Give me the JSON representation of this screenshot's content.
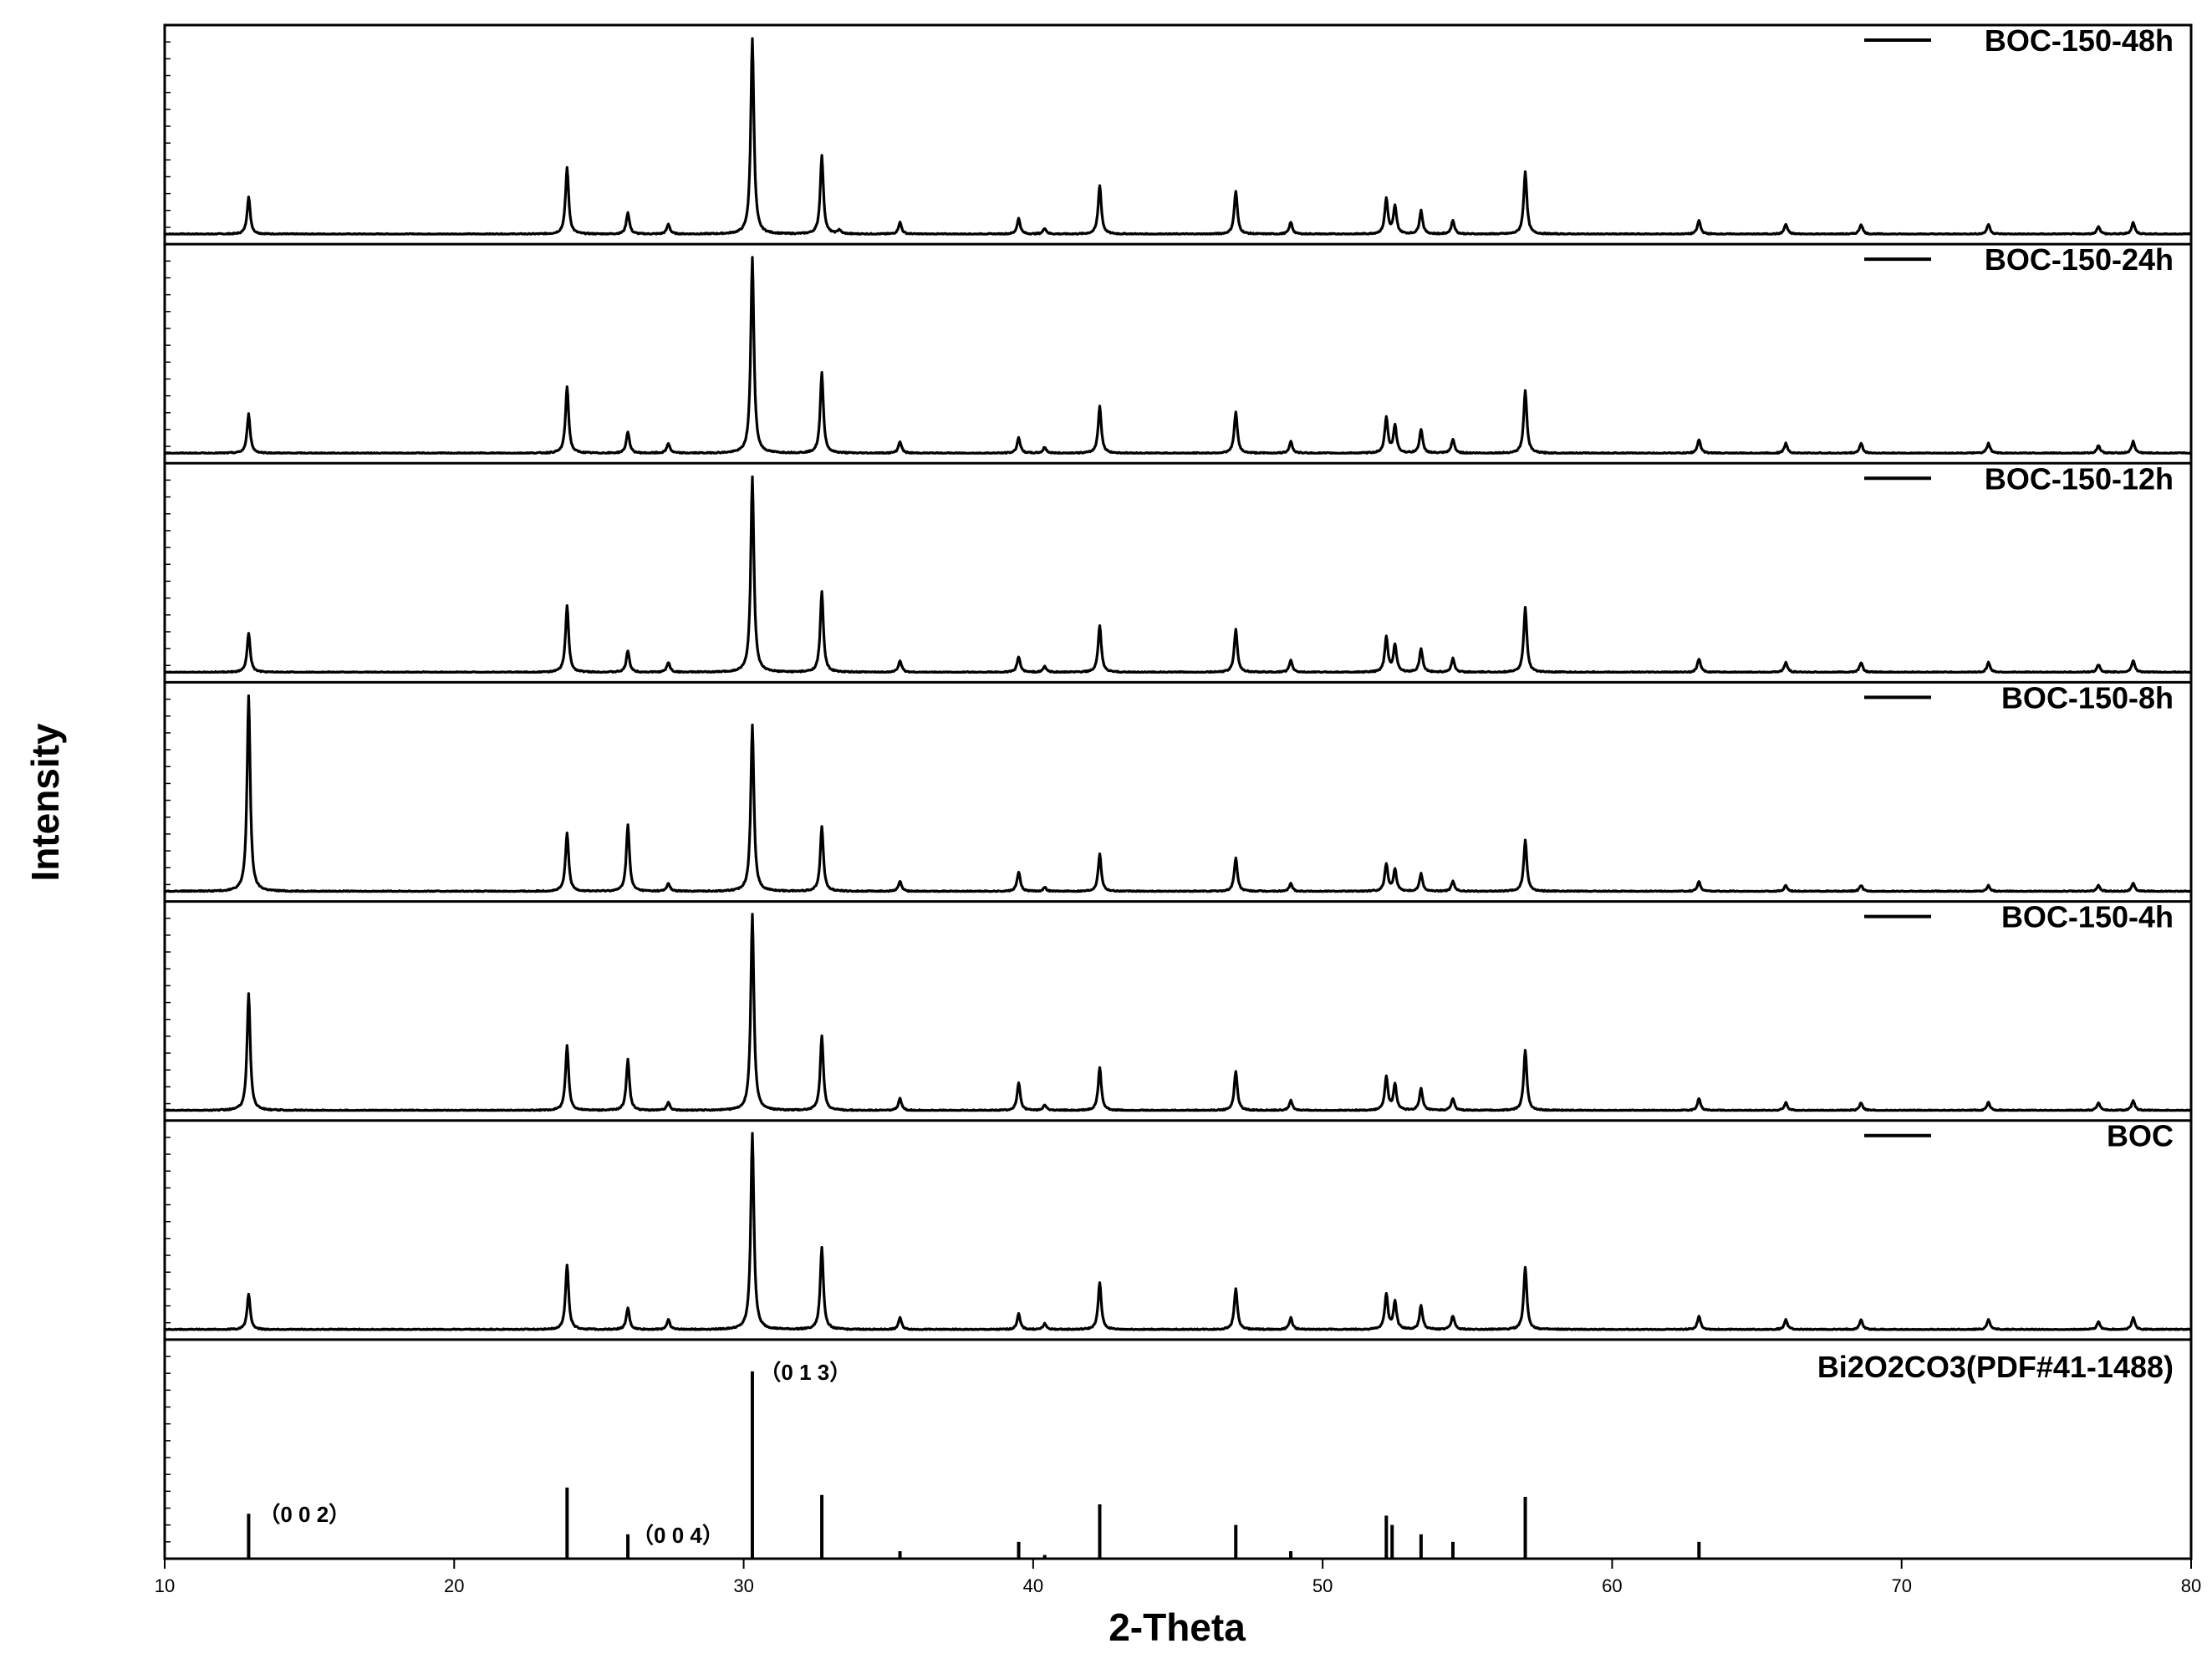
{
  "chart_data": {
    "type": "line",
    "title": "",
    "xlabel": "2-Theta",
    "ylabel": "Intensity",
    "xlim": [
      10,
      80
    ],
    "xticks": [
      10,
      20,
      30,
      40,
      50,
      60,
      70,
      80
    ],
    "grid": false,
    "legend_placement": "top-right of each panel",
    "series": [
      {
        "name": "BOC-150-48h",
        "peaks": [
          [
            12.9,
            0.19
          ],
          [
            23.9,
            0.34
          ],
          [
            26.0,
            0.11
          ],
          [
            27.4,
            0.05
          ],
          [
            30.3,
            1.0
          ],
          [
            32.7,
            0.4
          ],
          [
            33.3,
            0.02
          ],
          [
            35.4,
            0.06
          ],
          [
            39.5,
            0.08
          ],
          [
            40.4,
            0.03
          ],
          [
            42.3,
            0.25
          ],
          [
            47.0,
            0.22
          ],
          [
            48.9,
            0.06
          ],
          [
            52.2,
            0.18
          ],
          [
            52.5,
            0.14
          ],
          [
            53.4,
            0.12
          ],
          [
            54.5,
            0.07
          ],
          [
            57.0,
            0.32
          ],
          [
            63.0,
            0.07
          ],
          [
            66.0,
            0.05
          ],
          [
            68.6,
            0.05
          ],
          [
            73.0,
            0.05
          ],
          [
            76.8,
            0.04
          ],
          [
            78.0,
            0.06
          ]
        ]
      },
      {
        "name": "BOC-150-24h",
        "peaks": [
          [
            12.9,
            0.2
          ],
          [
            23.9,
            0.34
          ],
          [
            26.0,
            0.11
          ],
          [
            27.4,
            0.05
          ],
          [
            30.3,
            1.0
          ],
          [
            32.7,
            0.41
          ],
          [
            35.4,
            0.06
          ],
          [
            39.5,
            0.08
          ],
          [
            40.4,
            0.03
          ],
          [
            42.3,
            0.24
          ],
          [
            47.0,
            0.21
          ],
          [
            48.9,
            0.06
          ],
          [
            52.2,
            0.18
          ],
          [
            52.5,
            0.14
          ],
          [
            53.4,
            0.12
          ],
          [
            54.5,
            0.07
          ],
          [
            57.0,
            0.32
          ],
          [
            63.0,
            0.07
          ],
          [
            66.0,
            0.05
          ],
          [
            68.6,
            0.05
          ],
          [
            73.0,
            0.05
          ],
          [
            76.8,
            0.04
          ],
          [
            78.0,
            0.06
          ]
        ]
      },
      {
        "name": "BOC-150-12h",
        "peaks": [
          [
            12.9,
            0.2
          ],
          [
            23.9,
            0.34
          ],
          [
            26.0,
            0.11
          ],
          [
            27.4,
            0.05
          ],
          [
            30.3,
            1.0
          ],
          [
            32.7,
            0.41
          ],
          [
            35.4,
            0.06
          ],
          [
            39.5,
            0.08
          ],
          [
            40.4,
            0.03
          ],
          [
            42.3,
            0.24
          ],
          [
            47.0,
            0.22
          ],
          [
            48.9,
            0.06
          ],
          [
            52.2,
            0.18
          ],
          [
            52.5,
            0.14
          ],
          [
            53.4,
            0.12
          ],
          [
            54.5,
            0.07
          ],
          [
            57.0,
            0.33
          ],
          [
            63.0,
            0.07
          ],
          [
            66.0,
            0.05
          ],
          [
            68.6,
            0.05
          ],
          [
            73.0,
            0.05
          ],
          [
            76.8,
            0.04
          ],
          [
            78.0,
            0.06
          ]
        ]
      },
      {
        "name": "BOC-150-8h",
        "peaks": [
          [
            12.9,
            1.0
          ],
          [
            23.9,
            0.3
          ],
          [
            26.0,
            0.34
          ],
          [
            27.4,
            0.04
          ],
          [
            30.3,
            0.85
          ],
          [
            32.7,
            0.33
          ],
          [
            35.4,
            0.05
          ],
          [
            39.5,
            0.1
          ],
          [
            40.4,
            0.02
          ],
          [
            42.3,
            0.19
          ],
          [
            47.0,
            0.17
          ],
          [
            48.9,
            0.04
          ],
          [
            52.2,
            0.14
          ],
          [
            52.5,
            0.11
          ],
          [
            53.4,
            0.09
          ],
          [
            54.5,
            0.05
          ],
          [
            57.0,
            0.26
          ],
          [
            63.0,
            0.05
          ],
          [
            66.0,
            0.03
          ],
          [
            68.6,
            0.03
          ],
          [
            73.0,
            0.03
          ],
          [
            76.8,
            0.03
          ],
          [
            78.0,
            0.04
          ]
        ]
      },
      {
        "name": "BOC-150-4h",
        "peaks": [
          [
            12.9,
            0.6
          ],
          [
            23.9,
            0.33
          ],
          [
            26.0,
            0.26
          ],
          [
            27.4,
            0.04
          ],
          [
            30.3,
            1.0
          ],
          [
            32.7,
            0.38
          ],
          [
            35.4,
            0.06
          ],
          [
            39.5,
            0.14
          ],
          [
            40.4,
            0.03
          ],
          [
            42.3,
            0.22
          ],
          [
            47.0,
            0.2
          ],
          [
            48.9,
            0.05
          ],
          [
            52.2,
            0.17
          ],
          [
            52.5,
            0.13
          ],
          [
            53.4,
            0.11
          ],
          [
            54.5,
            0.06
          ],
          [
            57.0,
            0.31
          ],
          [
            63.0,
            0.06
          ],
          [
            66.0,
            0.04
          ],
          [
            68.6,
            0.04
          ],
          [
            73.0,
            0.04
          ],
          [
            76.8,
            0.04
          ],
          [
            78.0,
            0.05
          ]
        ]
      },
      {
        "name": "BOC",
        "peaks": [
          [
            12.9,
            0.18
          ],
          [
            23.9,
            0.33
          ],
          [
            26.0,
            0.11
          ],
          [
            27.4,
            0.05
          ],
          [
            30.3,
            1.0
          ],
          [
            32.7,
            0.42
          ],
          [
            35.4,
            0.06
          ],
          [
            39.5,
            0.08
          ],
          [
            40.4,
            0.03
          ],
          [
            42.3,
            0.24
          ],
          [
            47.0,
            0.21
          ],
          [
            48.9,
            0.06
          ],
          [
            52.2,
            0.18
          ],
          [
            52.5,
            0.14
          ],
          [
            53.4,
            0.12
          ],
          [
            54.5,
            0.07
          ],
          [
            57.0,
            0.32
          ],
          [
            63.0,
            0.07
          ],
          [
            66.0,
            0.05
          ],
          [
            68.6,
            0.05
          ],
          [
            73.0,
            0.05
          ],
          [
            76.8,
            0.04
          ],
          [
            78.0,
            0.06
          ]
        ]
      }
    ],
    "reference": {
      "name": "Bi2O2CO3(PDF#41-1488)",
      "lines": [
        [
          12.9,
          0.24
        ],
        [
          23.9,
          0.38
        ],
        [
          26.0,
          0.13
        ],
        [
          30.3,
          1.0
        ],
        [
          32.7,
          0.34
        ],
        [
          35.4,
          0.04
        ],
        [
          39.5,
          0.09
        ],
        [
          40.4,
          0.02
        ],
        [
          42.3,
          0.29
        ],
        [
          47.0,
          0.18
        ],
        [
          48.9,
          0.04
        ],
        [
          52.2,
          0.23
        ],
        [
          52.4,
          0.18
        ],
        [
          53.4,
          0.13
        ],
        [
          54.5,
          0.09
        ],
        [
          57.0,
          0.33
        ],
        [
          63.0,
          0.09
        ]
      ],
      "annotations": [
        {
          "x": 13.1,
          "h": 0.24,
          "text": "（0 0 2）"
        },
        {
          "x": 26.0,
          "h": 0.13,
          "text": "（0 0 4）"
        },
        {
          "x": 30.4,
          "h": 1.0,
          "text": "（0 1 3）"
        }
      ]
    }
  }
}
